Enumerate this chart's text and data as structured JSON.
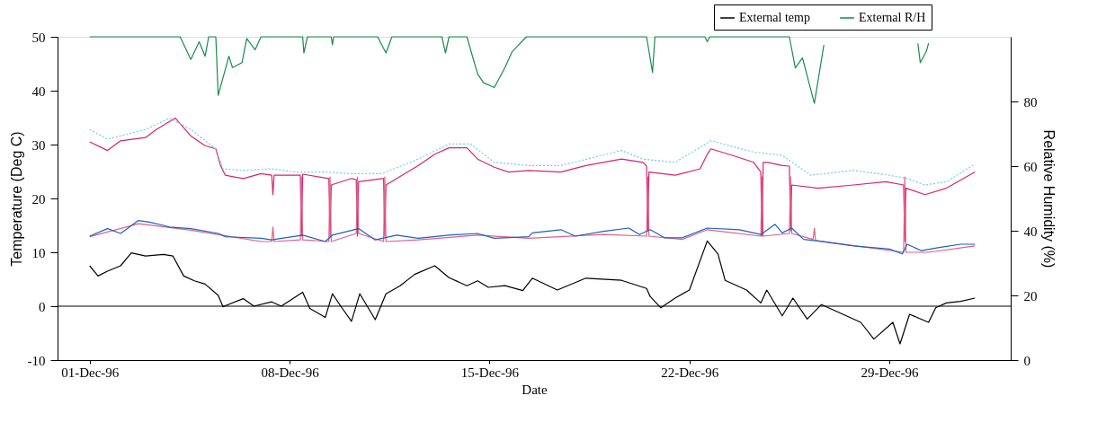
{
  "chart_data": {
    "type": "line",
    "xlabel": "Date",
    "ylabel": "Temperature (Deg C)",
    "y2label": "Relative Humidity (%)",
    "xlim": [
      "1996-11-29T21:00",
      "1997-01-02T06:00"
    ],
    "xticks": [
      {
        "value": "1996-12-01T00:00",
        "label": "01-Dec-96"
      },
      {
        "value": "1996-12-08T00:00",
        "label": "08-Dec-96"
      },
      {
        "value": "1996-12-15T00:00",
        "label": "15-Dec-96"
      },
      {
        "value": "1996-12-22T00:00",
        "label": "22-Dec-96"
      },
      {
        "value": "1996-12-29T00:00",
        "label": "29-Dec-96"
      }
    ],
    "ylim": [
      -10,
      50
    ],
    "yticks": [
      -10,
      0,
      10,
      20,
      30,
      40,
      50
    ],
    "y2lim": [
      0,
      100
    ],
    "y2ticks": [
      0,
      20,
      40,
      60,
      80
    ],
    "grid": false,
    "legend": "top right",
    "line_style": "solid",
    "ref_lines": [
      {
        "axis": "y",
        "value": 0,
        "color": "#000000"
      }
    ],
    "series": [
      {
        "name": "External temp",
        "color": "#000000",
        "x": [
          "1996-12-01T00:00",
          "1996-12-01T07:00",
          "1996-12-01T15:00",
          "1996-12-02T02:00",
          "1996-12-02T11:00",
          "1996-12-02T23:00",
          "1996-12-03T14:00",
          "1996-12-03T22:00",
          "1996-12-04T07:00",
          "1996-12-04T16:00",
          "1996-12-05T01:00",
          "1996-12-05T12:00",
          "1996-12-05T16:00",
          "1996-12-06T09:00",
          "1996-12-06T18:00",
          "1996-12-07T09:00",
          "1996-12-07T17:00",
          "1996-12-08T11:00",
          "1996-12-08T17:00",
          "1996-12-09T06:00",
          "1996-12-09T12:00",
          "1996-12-09T19:00",
          "1996-12-10T04:00",
          "1996-12-10T11:00",
          "1996-12-11T00:00",
          "1996-12-11T09:00",
          "1996-12-11T21:00",
          "1996-12-12T09:00",
          "1996-12-13T02:00",
          "1996-12-13T14:00",
          "1996-12-14T05:00",
          "1996-12-14T14:00",
          "1996-12-14T23:00",
          "1996-12-15T13:00",
          "1996-12-16T04:00",
          "1996-12-16T12:00",
          "1996-12-17T09:00",
          "1996-12-18T09:00",
          "1996-12-19T15:00",
          "1996-12-20T12:00",
          "1996-12-20T15:00",
          "1996-12-21T00:00",
          "1996-12-21T12:00",
          "1996-12-22T00:00",
          "1996-12-22T15:00",
          "1996-12-23T00:00",
          "1996-12-23T06:00",
          "1996-12-24T00:00",
          "1996-12-24T12:00",
          "1996-12-24T17:00",
          "1996-12-25T06:00",
          "1996-12-25T15:00",
          "1996-12-26T03:00",
          "1996-12-26T15:00",
          "1996-12-27T06:00",
          "1996-12-28T00:00",
          "1996-12-28T11:00",
          "1996-12-29T03:00",
          "1996-12-29T09:00",
          "1996-12-29T17:00",
          "1996-12-30T09:00",
          "1996-12-30T15:00",
          "1996-12-31T00:00",
          "1996-12-31T12:00",
          "1997-01-01T00:00"
        ],
        "values": [
          7.5,
          5.6,
          6.5,
          7.5,
          9.9,
          9.3,
          9.6,
          9.3,
          5.6,
          4.7,
          4.1,
          2.0,
          -0.1,
          1.4,
          0.0,
          0.8,
          0.0,
          2.6,
          -0.4,
          -2.1,
          2.3,
          0.0,
          -2.8,
          2.3,
          -2.5,
          2.3,
          3.8,
          5.9,
          7.5,
          5.3,
          3.8,
          4.7,
          3.5,
          3.8,
          2.9,
          5.2,
          3.0,
          5.2,
          4.8,
          3.3,
          1.8,
          -0.3,
          1.5,
          3.0,
          12.1,
          9.7,
          4.8,
          3.0,
          0.6,
          3.0,
          -1.8,
          1.5,
          -2.4,
          0.3,
          -1.2,
          -3.0,
          -6.1,
          -3.0,
          -7.0,
          -1.5,
          -3.0,
          -0.3,
          0.6,
          0.9,
          1.5
        ]
      },
      {
        "name": "External R/H",
        "color": "#1a8a50",
        "axis": "y2",
        "x": [
          "1996-12-01T00:00",
          "1996-12-04T04:00",
          "1996-12-04T13:00",
          "1996-12-04T20:00",
          "1996-12-05T01:00",
          "1996-12-05T04:00",
          "1996-12-05T10:00",
          "1996-12-05T12:00",
          "1996-12-05T21:00",
          "1996-12-06T00:00",
          "1996-12-06T08:00",
          "1996-12-06T12:00",
          "1996-12-06T19:00",
          "1996-12-07T00:00",
          "1996-12-08T11:00",
          "1996-12-08T12:00",
          "1996-12-08T15:00",
          "1996-12-09T11:00",
          "1996-12-09T12:00",
          "1996-12-09T13:00",
          "1996-12-11T02:00",
          "1996-12-11T09:00",
          "1996-12-11T14:00",
          "1996-12-13T08:00",
          "1996-12-13T11:00",
          "1996-12-13T14:00",
          "1996-12-14T05:00",
          "1996-12-14T14:00",
          "1996-12-14T19:00",
          "1996-12-15T04:00",
          "1996-12-15T13:00",
          "1996-12-15T19:00",
          "1996-12-16T07:00",
          "1996-12-20T12:00",
          "1996-12-20T17:00",
          "1996-12-20T19:00",
          "1996-12-22T13:00",
          "1996-12-22T15:00",
          "1996-12-22T17:00",
          "1996-12-25T12:00",
          "1996-12-25T17:00",
          "1996-12-25T23:00",
          "1996-12-26T09:00",
          "1996-12-26T17:00",
          "1996-12-28T00:00",
          "1996-12-30T00:00",
          "1996-12-30T02:00",
          "1996-12-30T07:00",
          "1996-12-30T09:00"
        ],
        "values": [
          100,
          100,
          93.0,
          98.5,
          94.0,
          100,
          100,
          81.9,
          94.0,
          90.5,
          92.0,
          99.5,
          96.0,
          100,
          100,
          95.0,
          100,
          100,
          97.5,
          100,
          100,
          95.0,
          100,
          100,
          95.0,
          100,
          100,
          88.5,
          85.8,
          84.3,
          90.5,
          95.4,
          100,
          100,
          89.0,
          100,
          100,
          98.5,
          100,
          100,
          90.4,
          93.5,
          79.4,
          97.5,
          null,
          98.0,
          92.0,
          95.4,
          98.0
        ]
      },
      {
        "color": "#d6246e",
        "x": [
          "1996-12-01T00:00",
          "1996-12-01T15:00",
          "1996-12-02T02:00",
          "1996-12-02T23:00",
          "1996-12-03T08:00",
          "1996-12-03T17:00",
          "1996-12-04T00:00",
          "1996-12-04T13:00",
          "1996-12-05T01:00",
          "1996-12-05T10:00",
          "1996-12-05T14:00",
          "1996-12-05T18:00",
          "1996-12-06T09:00",
          "1996-12-07T00:00",
          "1996-12-07T09:00",
          "1996-12-07T10:00",
          "1996-12-07T11:00",
          "1996-12-08T09:00",
          "1996-12-08T10:00",
          "1996-12-08T11:00",
          "1996-12-09T09:00",
          "1996-12-09T10:00",
          "1996-12-09T11:00",
          "1996-12-10T04:00",
          "1996-12-10T08:00",
          "1996-12-10T09:00",
          "1996-12-10T10:00",
          "1996-12-11T06:00",
          "1996-12-11T07:00",
          "1996-12-11T08:00",
          "1996-12-11T09:00",
          "1996-12-12T12:00",
          "1996-12-13T02:00",
          "1996-12-13T14:00",
          "1996-12-14T05:00",
          "1996-12-14T14:00",
          "1996-12-15T04:00",
          "1996-12-15T16:00",
          "1996-12-16T09:00",
          "1996-12-17T12:00",
          "1996-12-18T09:00",
          "1996-12-19T15:00",
          "1996-12-20T09:00",
          "1996-12-20T12:00",
          "1996-12-20T13:00",
          "1996-12-20T14:00",
          "1996-12-21T12:00",
          "1996-12-22T09:00",
          "1996-12-22T15:00",
          "1996-12-22T18:00",
          "1996-12-23T12:00",
          "1996-12-24T06:00",
          "1996-12-24T12:00",
          "1996-12-24T13:00",
          "1996-12-24T14:00",
          "1996-12-24T18:00",
          "1996-12-25T06:00",
          "1996-12-25T12:00",
          "1996-12-25T13:00",
          "1996-12-25T14:00",
          "1996-12-26T12:00",
          "1996-12-27T18:00",
          "1996-12-28T21:00",
          "1996-12-29T12:00",
          "1996-12-29T13:00",
          "1996-12-29T14:00",
          "1996-12-30T06:00",
          "1996-12-31T00:00",
          "1997-01-01T00:00"
        ],
        "values": [
          30.5,
          28.9,
          30.7,
          31.3,
          32.8,
          34.0,
          34.9,
          31.6,
          29.8,
          29.2,
          26.1,
          24.3,
          23.7,
          24.6,
          24.3,
          20.7,
          24.3,
          24.3,
          13.0,
          24.5,
          23.7,
          13.0,
          22.5,
          23.7,
          23.5,
          13.0,
          23.1,
          23.7,
          23.7,
          13.0,
          22.5,
          26.1,
          28.2,
          29.4,
          29.4,
          27.3,
          25.8,
          24.9,
          25.2,
          24.9,
          26.1,
          27.3,
          26.7,
          26.0,
          14.0,
          24.9,
          24.3,
          25.5,
          28.2,
          29.2,
          28.0,
          26.7,
          24.9,
          13.0,
          26.7,
          26.7,
          26.1,
          26.0,
          14.0,
          22.5,
          21.9,
          22.5,
          23.1,
          22.5,
          12.0,
          21.9,
          20.7,
          21.9,
          24.9
        ]
      },
      {
        "color": "#6fd0e0",
        "line_style": "dotted",
        "x": [
          "1996-12-01T00:00",
          "1996-12-01T15:00",
          "1996-12-02T23:00",
          "1996-12-03T19:00",
          "1996-12-04T13:00",
          "1996-12-05T10:00",
          "1996-12-05T16:00",
          "1996-12-06T09:00",
          "1996-12-07T09:00",
          "1996-12-08T05:00",
          "1996-12-09T07:00",
          "1996-12-10T04:00",
          "1996-12-11T06:00",
          "1996-12-12T12:00",
          "1996-12-13T14:00",
          "1996-12-14T08:00",
          "1996-12-15T04:00",
          "1996-12-16T09:00",
          "1996-12-17T12:00",
          "1996-12-19T15:00",
          "1996-12-20T09:00",
          "1996-12-21T12:00",
          "1996-12-22T18:00",
          "1996-12-24T06:00",
          "1996-12-25T06:00",
          "1996-12-26T06:00",
          "1996-12-27T18:00",
          "1996-12-29T00:00",
          "1996-12-29T15:00",
          "1996-12-30T06:00",
          "1996-12-31T00:00",
          "1997-01-01T00:00"
        ],
        "values": [
          32.8,
          31.0,
          32.8,
          34.9,
          32.8,
          29.2,
          25.5,
          25.2,
          25.5,
          24.9,
          24.9,
          24.6,
          24.6,
          27.3,
          30.1,
          30.1,
          26.7,
          26.1,
          26.1,
          28.9,
          27.3,
          26.7,
          30.7,
          28.6,
          28.0,
          24.3,
          25.2,
          24.3,
          23.7,
          22.5,
          23.1,
          26.4
        ]
      },
      {
        "color": "#e0608a",
        "x": [
          "1996-12-01T00:00",
          "1996-12-02T17:00",
          "1996-12-04T13:00",
          "1996-12-07T00:00",
          "1996-12-07T09:00",
          "1996-12-07T10:00",
          "1996-12-07T11:00",
          "1996-12-08T09:00",
          "1996-12-08T10:00",
          "1996-12-08T11:00",
          "1996-12-09T09:00",
          "1996-12-09T10:00",
          "1996-12-09T11:00",
          "1996-12-10T08:00",
          "1996-12-10T09:00",
          "1996-12-10T10:00",
          "1996-12-11T07:00",
          "1996-12-11T08:00",
          "1996-12-11T09:00",
          "1996-12-12T12:00",
          "1996-12-14T14:00",
          "1996-12-16T09:00",
          "1996-12-19T00:00",
          "1996-12-20T12:00",
          "1996-12-20T13:00",
          "1996-12-20T14:00",
          "1996-12-21T18:00",
          "1996-12-22T15:00",
          "1996-12-24T12:00",
          "1996-12-24T13:00",
          "1996-12-24T14:00",
          "1996-12-25T12:00",
          "1996-12-25T13:00",
          "1996-12-25T14:00",
          "1996-12-26T08:00",
          "1996-12-26T09:00",
          "1996-12-26T10:00",
          "1996-12-29T12:00",
          "1996-12-29T13:00",
          "1996-12-29T14:00",
          "1996-12-30T09:00",
          "1997-01-01T00:00"
        ],
        "values": [
          12.9,
          15.3,
          14.1,
          12.0,
          12.0,
          14.7,
          12.0,
          12.3,
          24.0,
          12.3,
          12.0,
          24.0,
          12.0,
          13.5,
          24.0,
          13.5,
          12.0,
          24.0,
          12.0,
          12.3,
          13.2,
          12.6,
          13.3,
          13.0,
          24.0,
          13.0,
          12.4,
          14.2,
          13.0,
          24.0,
          13.0,
          13.5,
          24.0,
          13.5,
          12.4,
          14.5,
          12.2,
          10.0,
          24.0,
          10.0,
          10.0,
          11.2
        ]
      },
      {
        "color": "#1f5fc0",
        "x": [
          "1996-12-01T00:00",
          "1996-12-01T15:00",
          "1996-12-02T02:00",
          "1996-12-02T17:00",
          "1996-12-03T02:00",
          "1996-12-03T14:00",
          "1996-12-03T19:00",
          "1996-12-04T13:00",
          "1996-12-05T12:00",
          "1996-12-05T18:00",
          "1996-12-07T00:00",
          "1996-12-07T09:00",
          "1996-12-08T11:00",
          "1996-12-09T06:00",
          "1996-12-09T12:00",
          "1996-12-10T10:00",
          "1996-12-11T00:00",
          "1996-12-11T18:00",
          "1996-12-12T12:00",
          "1996-12-13T14:00",
          "1996-12-14T14:00",
          "1996-12-15T04:00",
          "1996-12-16T09:00",
          "1996-12-16T12:00",
          "1996-12-17T12:00",
          "1996-12-18T00:00",
          "1996-12-19T00:00",
          "1996-12-19T21:00",
          "1996-12-20T06:00",
          "1996-12-20T15:00",
          "1996-12-21T03:00",
          "1996-12-21T18:00",
          "1996-12-22T15:00",
          "1996-12-23T18:00",
          "1996-12-24T12:00",
          "1996-12-25T00:00",
          "1996-12-25T06:00",
          "1996-12-25T14:00",
          "1996-12-26T00:00",
          "1996-12-26T12:00",
          "1996-12-27T18:00",
          "1996-12-29T00:00",
          "1996-12-29T11:00",
          "1996-12-29T15:00",
          "1996-12-30T03:00",
          "1996-12-30T18:00",
          "1996-12-31T12:00",
          "1997-01-01T00:00"
        ],
        "values": [
          13.0,
          14.4,
          13.5,
          15.9,
          15.6,
          15.0,
          14.7,
          14.4,
          13.5,
          12.9,
          12.6,
          12.3,
          13.2,
          12.0,
          13.2,
          14.4,
          12.3,
          13.2,
          12.6,
          13.2,
          13.5,
          12.6,
          12.9,
          13.6,
          14.2,
          13.0,
          13.9,
          14.5,
          13.3,
          14.2,
          12.7,
          12.7,
          14.5,
          14.2,
          13.3,
          15.2,
          13.6,
          14.5,
          12.4,
          12.1,
          11.2,
          10.6,
          9.7,
          11.5,
          10.3,
          10.9,
          11.5,
          11.5
        ]
      }
    ]
  }
}
